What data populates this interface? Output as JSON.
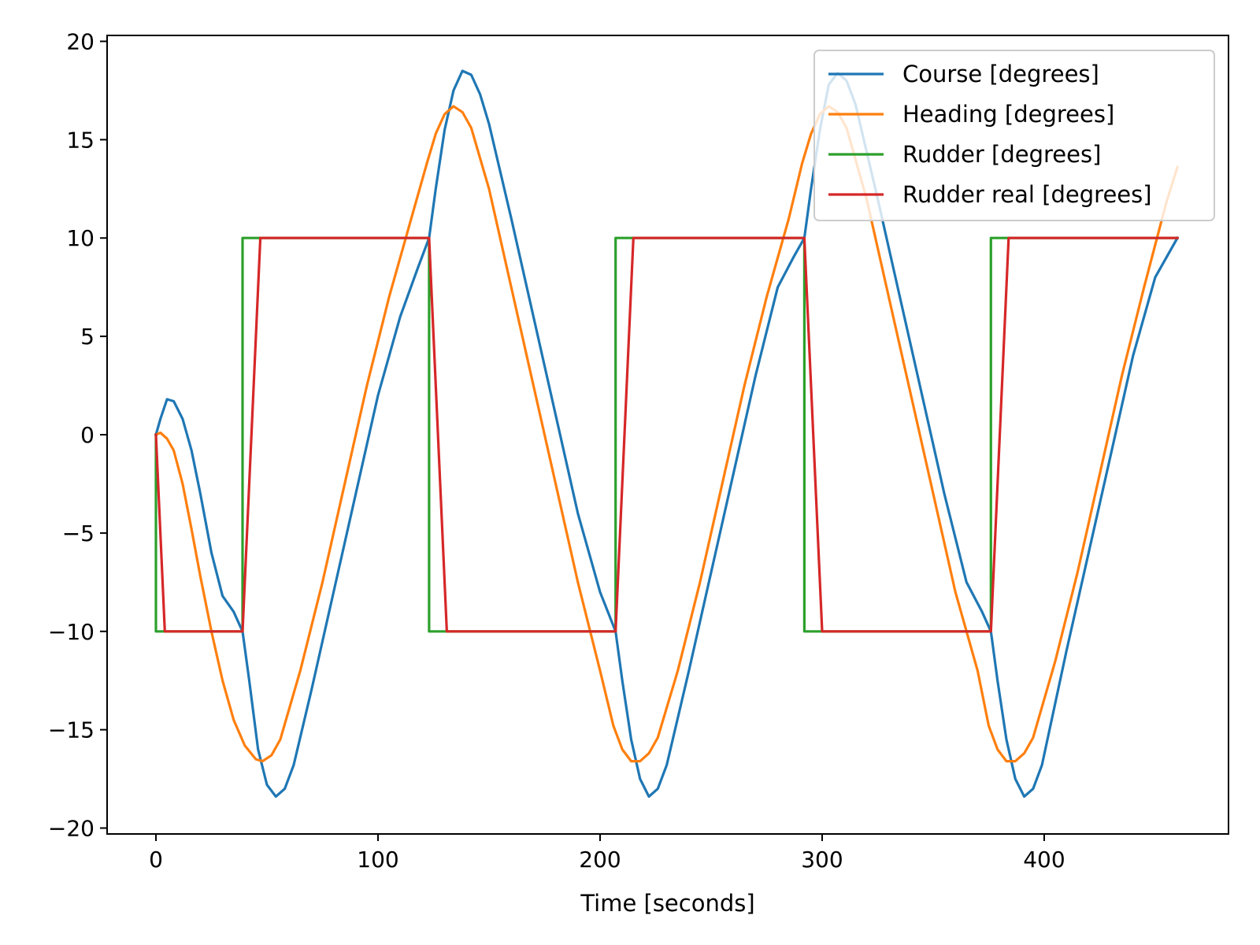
{
  "chart_data": {
    "type": "line",
    "title": "",
    "xlabel": "Time [seconds]",
    "ylabel": "",
    "xlim": [
      -22,
      483
    ],
    "ylim": [
      -20.3,
      20.3
    ],
    "xticks": [
      0,
      100,
      200,
      300,
      400
    ],
    "xtick_labels": [
      "0",
      "100",
      "200",
      "300",
      "400"
    ],
    "yticks": [
      -20,
      -15,
      -10,
      -5,
      0,
      5,
      10,
      15,
      20
    ],
    "ytick_labels": [
      "−20",
      "−15",
      "−10",
      "−5",
      "0",
      "5",
      "10",
      "15",
      "20"
    ],
    "grid": false,
    "legend_position": "top-right",
    "series": [
      {
        "name": "Course [degrees]",
        "color": "#1f77b4",
        "points": [
          [
            0,
            0
          ],
          [
            2,
            0.8
          ],
          [
            5,
            1.8
          ],
          [
            8,
            1.7
          ],
          [
            12,
            0.8
          ],
          [
            16,
            -0.8
          ],
          [
            20,
            -3
          ],
          [
            25,
            -6
          ],
          [
            30,
            -8.2
          ],
          [
            35,
            -9
          ],
          [
            39,
            -10
          ],
          [
            42,
            -12.5
          ],
          [
            46,
            -16
          ],
          [
            50,
            -17.8
          ],
          [
            54,
            -18.4
          ],
          [
            58,
            -18
          ],
          [
            62,
            -16.8
          ],
          [
            70,
            -13
          ],
          [
            80,
            -8
          ],
          [
            90,
            -3
          ],
          [
            100,
            2
          ],
          [
            110,
            6
          ],
          [
            118,
            8.5
          ],
          [
            123,
            10
          ],
          [
            126,
            12.5
          ],
          [
            130,
            15.5
          ],
          [
            134,
            17.5
          ],
          [
            138,
            18.5
          ],
          [
            142,
            18.3
          ],
          [
            146,
            17.3
          ],
          [
            150,
            15.8
          ],
          [
            160,
            11
          ],
          [
            170,
            6
          ],
          [
            180,
            1
          ],
          [
            190,
            -4
          ],
          [
            200,
            -8
          ],
          [
            207,
            -10
          ],
          [
            210,
            -12.5
          ],
          [
            214,
            -15.5
          ],
          [
            218,
            -17.5
          ],
          [
            222,
            -18.4
          ],
          [
            226,
            -18
          ],
          [
            230,
            -16.8
          ],
          [
            240,
            -12
          ],
          [
            250,
            -7
          ],
          [
            260,
            -2
          ],
          [
            270,
            3
          ],
          [
            280,
            7.5
          ],
          [
            287,
            9
          ],
          [
            292,
            10
          ],
          [
            295,
            12.5
          ],
          [
            299,
            15.5
          ],
          [
            303,
            17.8
          ],
          [
            307,
            18.4
          ],
          [
            311,
            18
          ],
          [
            315,
            16.8
          ],
          [
            325,
            12
          ],
          [
            335,
            7
          ],
          [
            345,
            2
          ],
          [
            355,
            -3
          ],
          [
            365,
            -7.5
          ],
          [
            372,
            -9
          ],
          [
            376,
            -10
          ],
          [
            379,
            -12.5
          ],
          [
            383,
            -15.5
          ],
          [
            387,
            -17.5
          ],
          [
            391,
            -18.4
          ],
          [
            395,
            -18
          ],
          [
            399,
            -16.8
          ],
          [
            410,
            -11
          ],
          [
            420,
            -6
          ],
          [
            430,
            -1
          ],
          [
            440,
            4
          ],
          [
            450,
            8
          ],
          [
            460,
            10
          ]
        ]
      },
      {
        "name": "Heading [degrees]",
        "color": "#ff7f0e",
        "points": [
          [
            0,
            0
          ],
          [
            2,
            0.1
          ],
          [
            5,
            -0.2
          ],
          [
            8,
            -0.8
          ],
          [
            12,
            -2.5
          ],
          [
            16,
            -4.8
          ],
          [
            20,
            -7.2
          ],
          [
            25,
            -10
          ],
          [
            30,
            -12.5
          ],
          [
            35,
            -14.5
          ],
          [
            40,
            -15.8
          ],
          [
            45,
            -16.5
          ],
          [
            48,
            -16.6
          ],
          [
            52,
            -16.3
          ],
          [
            56,
            -15.5
          ],
          [
            65,
            -12
          ],
          [
            75,
            -7.5
          ],
          [
            85,
            -2.5
          ],
          [
            95,
            2.5
          ],
          [
            105,
            7
          ],
          [
            115,
            11
          ],
          [
            122,
            13.8
          ],
          [
            126,
            15.3
          ],
          [
            130,
            16.3
          ],
          [
            134,
            16.7
          ],
          [
            138,
            16.4
          ],
          [
            142,
            15.6
          ],
          [
            150,
            12.5
          ],
          [
            160,
            7.5
          ],
          [
            170,
            2.5
          ],
          [
            180,
            -2.5
          ],
          [
            190,
            -7.5
          ],
          [
            200,
            -12
          ],
          [
            206,
            -14.8
          ],
          [
            210,
            -16
          ],
          [
            214,
            -16.6
          ],
          [
            218,
            -16.6
          ],
          [
            222,
            -16.2
          ],
          [
            226,
            -15.4
          ],
          [
            235,
            -12
          ],
          [
            245,
            -7.5
          ],
          [
            255,
            -2.5
          ],
          [
            265,
            2.5
          ],
          [
            275,
            7
          ],
          [
            285,
            11
          ],
          [
            291,
            13.8
          ],
          [
            295,
            15.3
          ],
          [
            299,
            16.3
          ],
          [
            303,
            16.7
          ],
          [
            307,
            16.4
          ],
          [
            311,
            15.6
          ],
          [
            320,
            12
          ],
          [
            330,
            7
          ],
          [
            340,
            2
          ],
          [
            350,
            -3
          ],
          [
            360,
            -8
          ],
          [
            370,
            -12
          ],
          [
            375,
            -14.8
          ],
          [
            379,
            -16
          ],
          [
            383,
            -16.6
          ],
          [
            387,
            -16.6
          ],
          [
            391,
            -16.2
          ],
          [
            395,
            -15.4
          ],
          [
            405,
            -11.5
          ],
          [
            415,
            -7
          ],
          [
            425,
            -2
          ],
          [
            435,
            3
          ],
          [
            445,
            7.5
          ],
          [
            455,
            11.8
          ],
          [
            460,
            13.6
          ]
        ]
      },
      {
        "name": "Rudder [degrees]",
        "color": "#2ca02c",
        "points": [
          [
            0,
            0
          ],
          [
            0,
            -10
          ],
          [
            39,
            -10
          ],
          [
            39,
            10
          ],
          [
            123,
            10
          ],
          [
            123,
            -10
          ],
          [
            207,
            -10
          ],
          [
            207,
            10
          ],
          [
            292,
            10
          ],
          [
            292,
            -10
          ],
          [
            376,
            -10
          ],
          [
            376,
            10
          ],
          [
            460,
            10
          ]
        ]
      },
      {
        "name": "Rudder real [degrees]",
        "color": "#d62728",
        "points": [
          [
            0,
            0
          ],
          [
            4,
            -10
          ],
          [
            39,
            -10
          ],
          [
            47,
            10
          ],
          [
            123,
            10
          ],
          [
            131,
            -10
          ],
          [
            207,
            -10
          ],
          [
            215,
            10
          ],
          [
            292,
            10
          ],
          [
            300,
            -10
          ],
          [
            376,
            -10
          ],
          [
            384,
            10
          ],
          [
            460,
            10
          ]
        ]
      }
    ]
  }
}
